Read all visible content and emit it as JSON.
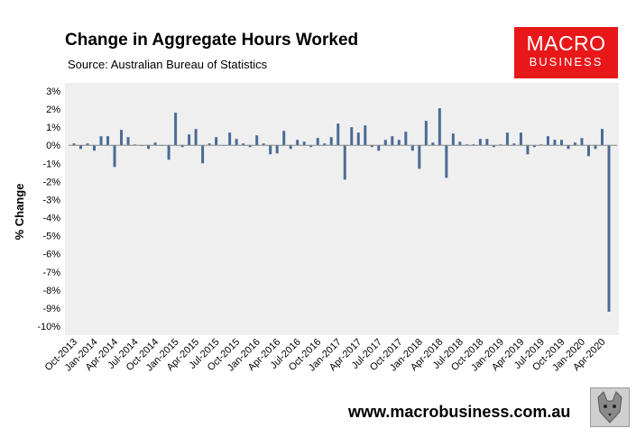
{
  "header": {
    "title": "Change in Aggregate Hours Worked",
    "source": "Source: Australian Bureau of Statistics"
  },
  "logo": {
    "line1": "MACRO",
    "line2": "BUSINESS"
  },
  "footer": {
    "url": "www.macrobusiness.com.au"
  },
  "colors": {
    "bar": "#4a6b96",
    "plot_bg": "#efefef",
    "logo_bg": "#e8171a"
  },
  "chart_data": {
    "type": "bar",
    "title": "Change in Aggregate Hours Worked",
    "ylabel": "% Change",
    "xlabel": "",
    "ylim": [
      -10,
      3
    ],
    "yticks": [
      3,
      2,
      1,
      0,
      -1,
      -2,
      -3,
      -4,
      -5,
      -6,
      -7,
      -8,
      -9,
      -10
    ],
    "ytick_labels": [
      "3%",
      "2%",
      "1%",
      "0%",
      "-1%",
      "-2%",
      "-3%",
      "-4%",
      "-5%",
      "-6%",
      "-7%",
      "-8%",
      "-9%",
      "-10%"
    ],
    "grid": false,
    "xtick_labels": [
      "Oct-2013",
      "Jan-2014",
      "Apr-2014",
      "Jul-2014",
      "Oct-2014",
      "Jan-2015",
      "Apr-2015",
      "Jul-2015",
      "Oct-2015",
      "Jan-2016",
      "Apr-2016",
      "Jul-2016",
      "Oct-2016",
      "Jan-2017",
      "Apr-2017",
      "Jul-2017",
      "Oct-2017",
      "Jan-2018",
      "Apr-2018",
      "Jul-2018",
      "Oct-2018",
      "Jan-2019",
      "Apr-2019",
      "Jul-2019",
      "Oct-2019",
      "Jan-2020",
      "Apr-2020"
    ],
    "start_month": "Oct-2013",
    "values": [
      0.1,
      -0.2,
      0.1,
      -0.3,
      0.5,
      0.5,
      -1.2,
      0.85,
      0.45,
      0.05,
      0.0,
      -0.2,
      0.15,
      0.0,
      -0.8,
      1.8,
      -0.1,
      0.6,
      0.9,
      -1.0,
      0.1,
      0.45,
      0.0,
      0.7,
      0.35,
      0.1,
      -0.1,
      0.55,
      0.1,
      -0.5,
      -0.45,
      0.8,
      -0.2,
      0.3,
      0.2,
      -0.1,
      0.4,
      0.1,
      0.45,
      1.2,
      -1.9,
      1.0,
      0.7,
      1.1,
      -0.1,
      -0.3,
      0.3,
      0.5,
      0.3,
      0.75,
      -0.3,
      -1.3,
      1.35,
      0.15,
      2.05,
      -1.8,
      0.65,
      0.2,
      0.05,
      0.05,
      0.35,
      0.35,
      -0.1,
      0.05,
      0.7,
      0.1,
      0.7,
      -0.5,
      -0.1,
      0.05,
      0.5,
      0.3,
      0.3,
      -0.2,
      0.15,
      0.4,
      -0.6,
      -0.2,
      0.9,
      -9.2
    ]
  }
}
